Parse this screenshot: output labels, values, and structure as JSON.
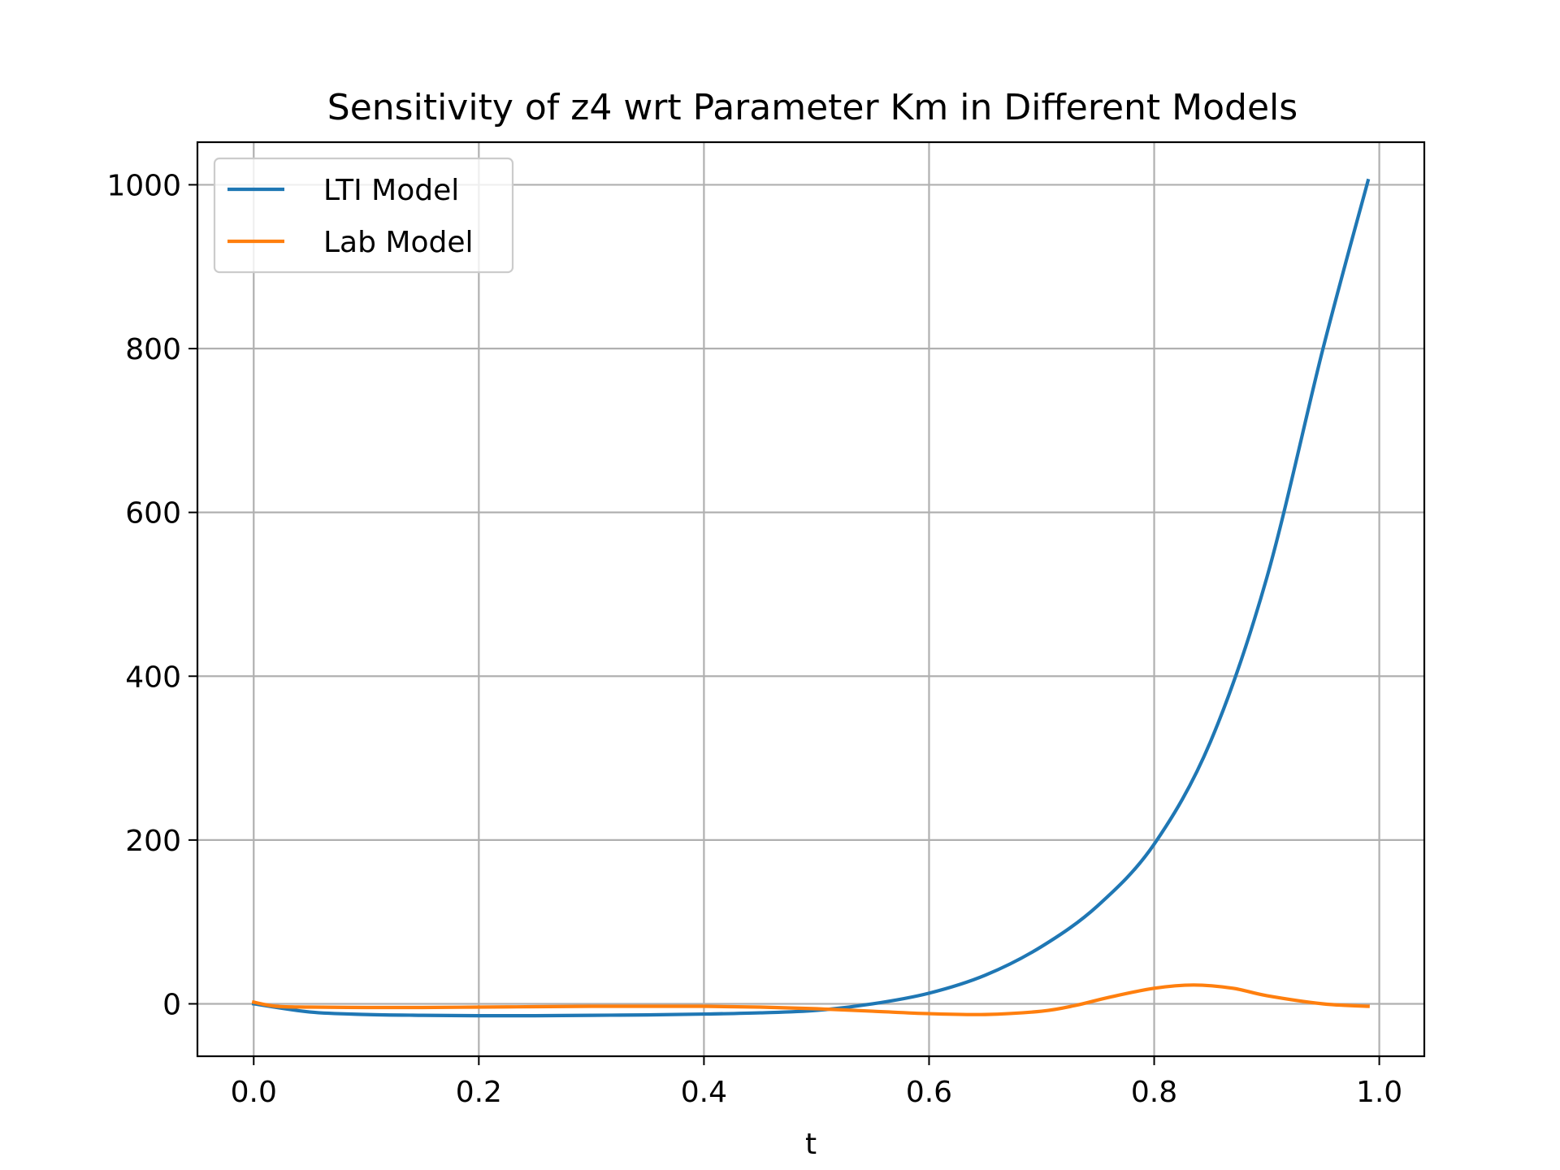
{
  "chart_data": {
    "type": "line",
    "title": "Sensitivity of z4 wrt Parameter Km in Different Models",
    "xlabel": "t",
    "ylabel": "",
    "xlim": [
      -0.05,
      1.04
    ],
    "ylim": [
      -64,
      1052
    ],
    "xticks": [
      0.0,
      0.2,
      0.4,
      0.6,
      0.8,
      1.0
    ],
    "xtick_labels": [
      "0.0",
      "0.2",
      "0.4",
      "0.6",
      "0.8",
      "1.0"
    ],
    "yticks": [
      0,
      200,
      400,
      600,
      800,
      1000
    ],
    "ytick_labels": [
      "0",
      "200",
      "400",
      "600",
      "800",
      "1000"
    ],
    "grid": true,
    "legend_position": "top-left",
    "series": [
      {
        "name": "LTI Model",
        "color": "#1f77b4",
        "x": [
          0.0,
          0.05,
          0.1,
          0.15,
          0.2,
          0.25,
          0.3,
          0.35,
          0.4,
          0.45,
          0.5,
          0.55,
          0.6,
          0.65,
          0.7,
          0.75,
          0.8,
          0.85,
          0.9,
          0.95,
          0.99
        ],
        "y": [
          0,
          -10,
          -13,
          -14,
          -14.5,
          -14.5,
          -14,
          -13.5,
          -12.5,
          -11,
          -8,
          0,
          13,
          35,
          70,
          120,
          195,
          320,
          520,
          800,
          1005
        ]
      },
      {
        "name": "Lab Model",
        "color": "#ff7f0e",
        "x": [
          0.0,
          0.02,
          0.05,
          0.1,
          0.15,
          0.2,
          0.25,
          0.3,
          0.35,
          0.4,
          0.45,
          0.5,
          0.55,
          0.6,
          0.65,
          0.7,
          0.73,
          0.76,
          0.8,
          0.835,
          0.87,
          0.9,
          0.95,
          0.99
        ],
        "y": [
          2,
          -3,
          -4,
          -4.5,
          -4.5,
          -4,
          -3.5,
          -3,
          -3,
          -3,
          -4,
          -6,
          -9,
          -12,
          -13,
          -9,
          -2,
          8,
          19,
          23,
          19,
          10,
          0,
          -3
        ]
      }
    ]
  }
}
